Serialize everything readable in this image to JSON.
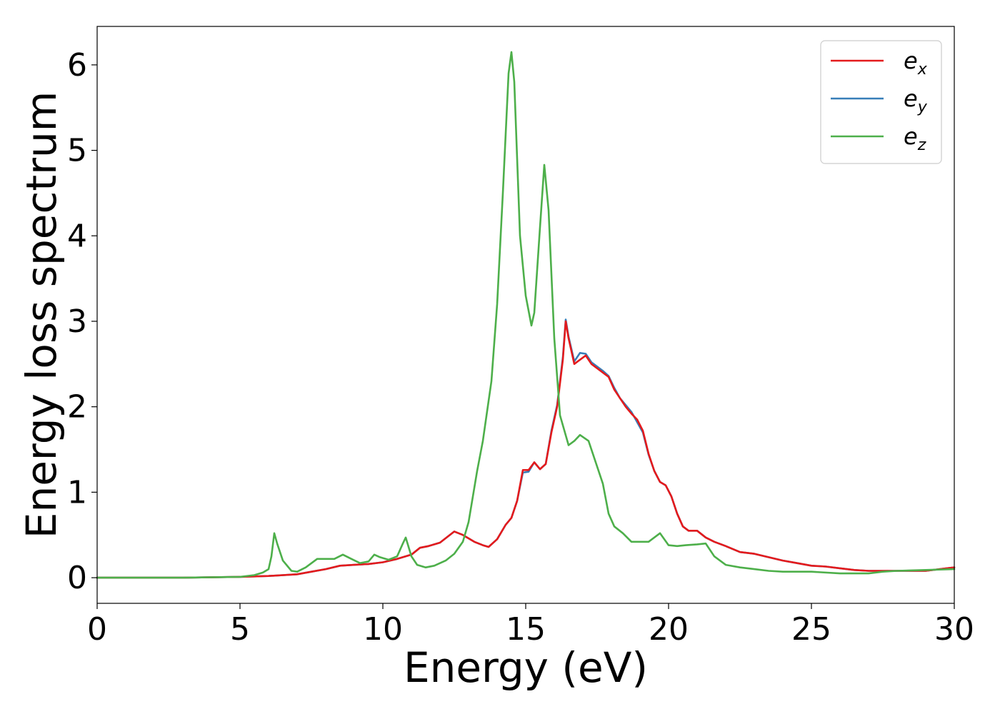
{
  "chart_data": {
    "type": "line",
    "xlabel": "Energy (eV)",
    "ylabel": "Energy loss spectrum",
    "xlim": [
      0,
      30
    ],
    "ylim": [
      -0.3,
      6.45
    ],
    "xticks": [
      0,
      5,
      10,
      15,
      20,
      25,
      30
    ],
    "xtick_labels": [
      "0",
      "5",
      "10",
      "15",
      "20",
      "25",
      "30"
    ],
    "yticks": [
      0,
      1,
      2,
      3,
      4,
      5,
      6
    ],
    "ytick_labels": [
      "0",
      "1",
      "2",
      "3",
      "4",
      "5",
      "6"
    ],
    "grid": false,
    "legend_position": "top-right",
    "series": [
      {
        "name": "e",
        "subscript": "x",
        "color": "#e41a1c",
        "x": [
          0,
          3,
          5,
          6,
          7,
          7.5,
          8,
          8.5,
          9,
          9.5,
          10,
          10.5,
          11,
          11.3,
          11.6,
          12,
          12.5,
          12.8,
          13.2,
          13.5,
          13.7,
          14,
          14.3,
          14.5,
          14.7,
          14.9,
          15.1,
          15.3,
          15.5,
          15.7,
          15.9,
          16.1,
          16.3,
          16.4,
          16.5,
          16.7,
          16.9,
          17.1,
          17.3,
          17.5,
          17.7,
          17.9,
          18.1,
          18.3,
          18.5,
          18.7,
          18.9,
          19.1,
          19.3,
          19.5,
          19.7,
          19.9,
          20.1,
          20.3,
          20.5,
          20.7,
          21,
          21.3,
          21.6,
          22,
          22.5,
          23,
          23.5,
          24,
          24.5,
          25,
          25.5,
          26,
          26.5,
          27,
          27.5,
          28,
          28.5,
          29,
          29.5,
          30
        ],
        "values": [
          0,
          0,
          0.01,
          0.02,
          0.04,
          0.07,
          0.1,
          0.14,
          0.15,
          0.16,
          0.18,
          0.22,
          0.27,
          0.35,
          0.37,
          0.41,
          0.54,
          0.5,
          0.42,
          0.38,
          0.36,
          0.45,
          0.62,
          0.7,
          0.9,
          1.26,
          1.26,
          1.35,
          1.27,
          1.33,
          1.7,
          2.0,
          2.55,
          3.0,
          2.8,
          2.5,
          2.55,
          2.6,
          2.5,
          2.45,
          2.4,
          2.35,
          2.2,
          2.1,
          2.0,
          1.92,
          1.85,
          1.72,
          1.45,
          1.25,
          1.12,
          1.08,
          0.95,
          0.75,
          0.6,
          0.55,
          0.55,
          0.47,
          0.42,
          0.37,
          0.3,
          0.28,
          0.24,
          0.2,
          0.17,
          0.14,
          0.13,
          0.11,
          0.09,
          0.08,
          0.08,
          0.08,
          0.08,
          0.08,
          0.1,
          0.12
        ]
      },
      {
        "name": "e",
        "subscript": "y",
        "color": "#377eb8",
        "x": [
          0,
          3,
          5,
          6,
          7,
          7.5,
          8,
          8.5,
          9,
          9.5,
          10,
          10.5,
          11,
          11.3,
          11.6,
          12,
          12.5,
          12.8,
          13.2,
          13.5,
          13.7,
          14,
          14.3,
          14.5,
          14.7,
          14.9,
          15.1,
          15.3,
          15.5,
          15.7,
          15.9,
          16.1,
          16.3,
          16.4,
          16.5,
          16.7,
          16.9,
          17.1,
          17.3,
          17.5,
          17.7,
          17.9,
          18.1,
          18.3,
          18.5,
          18.7,
          18.9,
          19.1,
          19.3,
          19.5,
          19.7,
          19.9,
          20.1,
          20.3,
          20.5,
          20.7,
          21,
          21.3,
          21.6,
          22,
          22.5,
          23,
          23.5,
          24,
          24.5,
          25,
          25.5,
          26,
          26.5,
          27,
          27.5,
          28,
          28.5,
          29,
          29.5,
          30
        ],
        "values": [
          0,
          0,
          0.01,
          0.02,
          0.04,
          0.07,
          0.1,
          0.14,
          0.15,
          0.16,
          0.18,
          0.22,
          0.27,
          0.35,
          0.37,
          0.41,
          0.54,
          0.5,
          0.42,
          0.38,
          0.36,
          0.45,
          0.62,
          0.7,
          0.9,
          1.23,
          1.24,
          1.35,
          1.27,
          1.33,
          1.72,
          2.02,
          2.58,
          3.02,
          2.82,
          2.53,
          2.63,
          2.62,
          2.52,
          2.47,
          2.42,
          2.36,
          2.22,
          2.1,
          2.02,
          1.94,
          1.82,
          1.7,
          1.44,
          1.25,
          1.12,
          1.08,
          0.95,
          0.75,
          0.6,
          0.55,
          0.55,
          0.47,
          0.42,
          0.37,
          0.3,
          0.28,
          0.24,
          0.2,
          0.17,
          0.14,
          0.13,
          0.11,
          0.09,
          0.08,
          0.08,
          0.08,
          0.08,
          0.08,
          0.1,
          0.12
        ]
      },
      {
        "name": "e",
        "subscript": "z",
        "color": "#4daf4a",
        "x": [
          0,
          3,
          5,
          5.5,
          5.8,
          6.0,
          6.1,
          6.2,
          6.3,
          6.5,
          6.8,
          7.0,
          7.3,
          7.7,
          8.0,
          8.3,
          8.6,
          8.9,
          9.2,
          9.5,
          9.7,
          9.9,
          10.2,
          10.5,
          10.7,
          10.8,
          11.0,
          11.2,
          11.5,
          11.8,
          12.2,
          12.5,
          12.8,
          13.0,
          13.3,
          13.5,
          13.8,
          14.0,
          14.2,
          14.4,
          14.5,
          14.6,
          14.8,
          15.0,
          15.2,
          15.3,
          15.5,
          15.65,
          15.8,
          16.0,
          16.2,
          16.5,
          16.7,
          16.9,
          17.2,
          17.5,
          17.7,
          17.9,
          18.1,
          18.4,
          18.7,
          19.0,
          19.3,
          19.7,
          20.0,
          20.3,
          20.6,
          21.0,
          21.3,
          21.6,
          22.0,
          22.5,
          23.0,
          23.5,
          24.0,
          25.0,
          26.0,
          27.0,
          27.5,
          28.0,
          29.0,
          30.0
        ],
        "values": [
          0,
          0,
          0.01,
          0.03,
          0.06,
          0.1,
          0.25,
          0.52,
          0.4,
          0.2,
          0.08,
          0.07,
          0.12,
          0.22,
          0.22,
          0.22,
          0.27,
          0.22,
          0.17,
          0.19,
          0.27,
          0.24,
          0.21,
          0.25,
          0.4,
          0.47,
          0.25,
          0.15,
          0.12,
          0.14,
          0.2,
          0.28,
          0.42,
          0.65,
          1.25,
          1.6,
          2.3,
          3.2,
          4.5,
          5.9,
          6.15,
          5.8,
          4.0,
          3.3,
          2.95,
          3.1,
          4.1,
          4.83,
          4.3,
          2.8,
          1.9,
          1.55,
          1.6,
          1.67,
          1.6,
          1.3,
          1.1,
          0.75,
          0.6,
          0.52,
          0.42,
          0.42,
          0.42,
          0.52,
          0.38,
          0.37,
          0.38,
          0.39,
          0.4,
          0.25,
          0.15,
          0.12,
          0.1,
          0.08,
          0.07,
          0.07,
          0.05,
          0.05,
          0.07,
          0.08,
          0.09,
          0.1
        ]
      }
    ]
  }
}
